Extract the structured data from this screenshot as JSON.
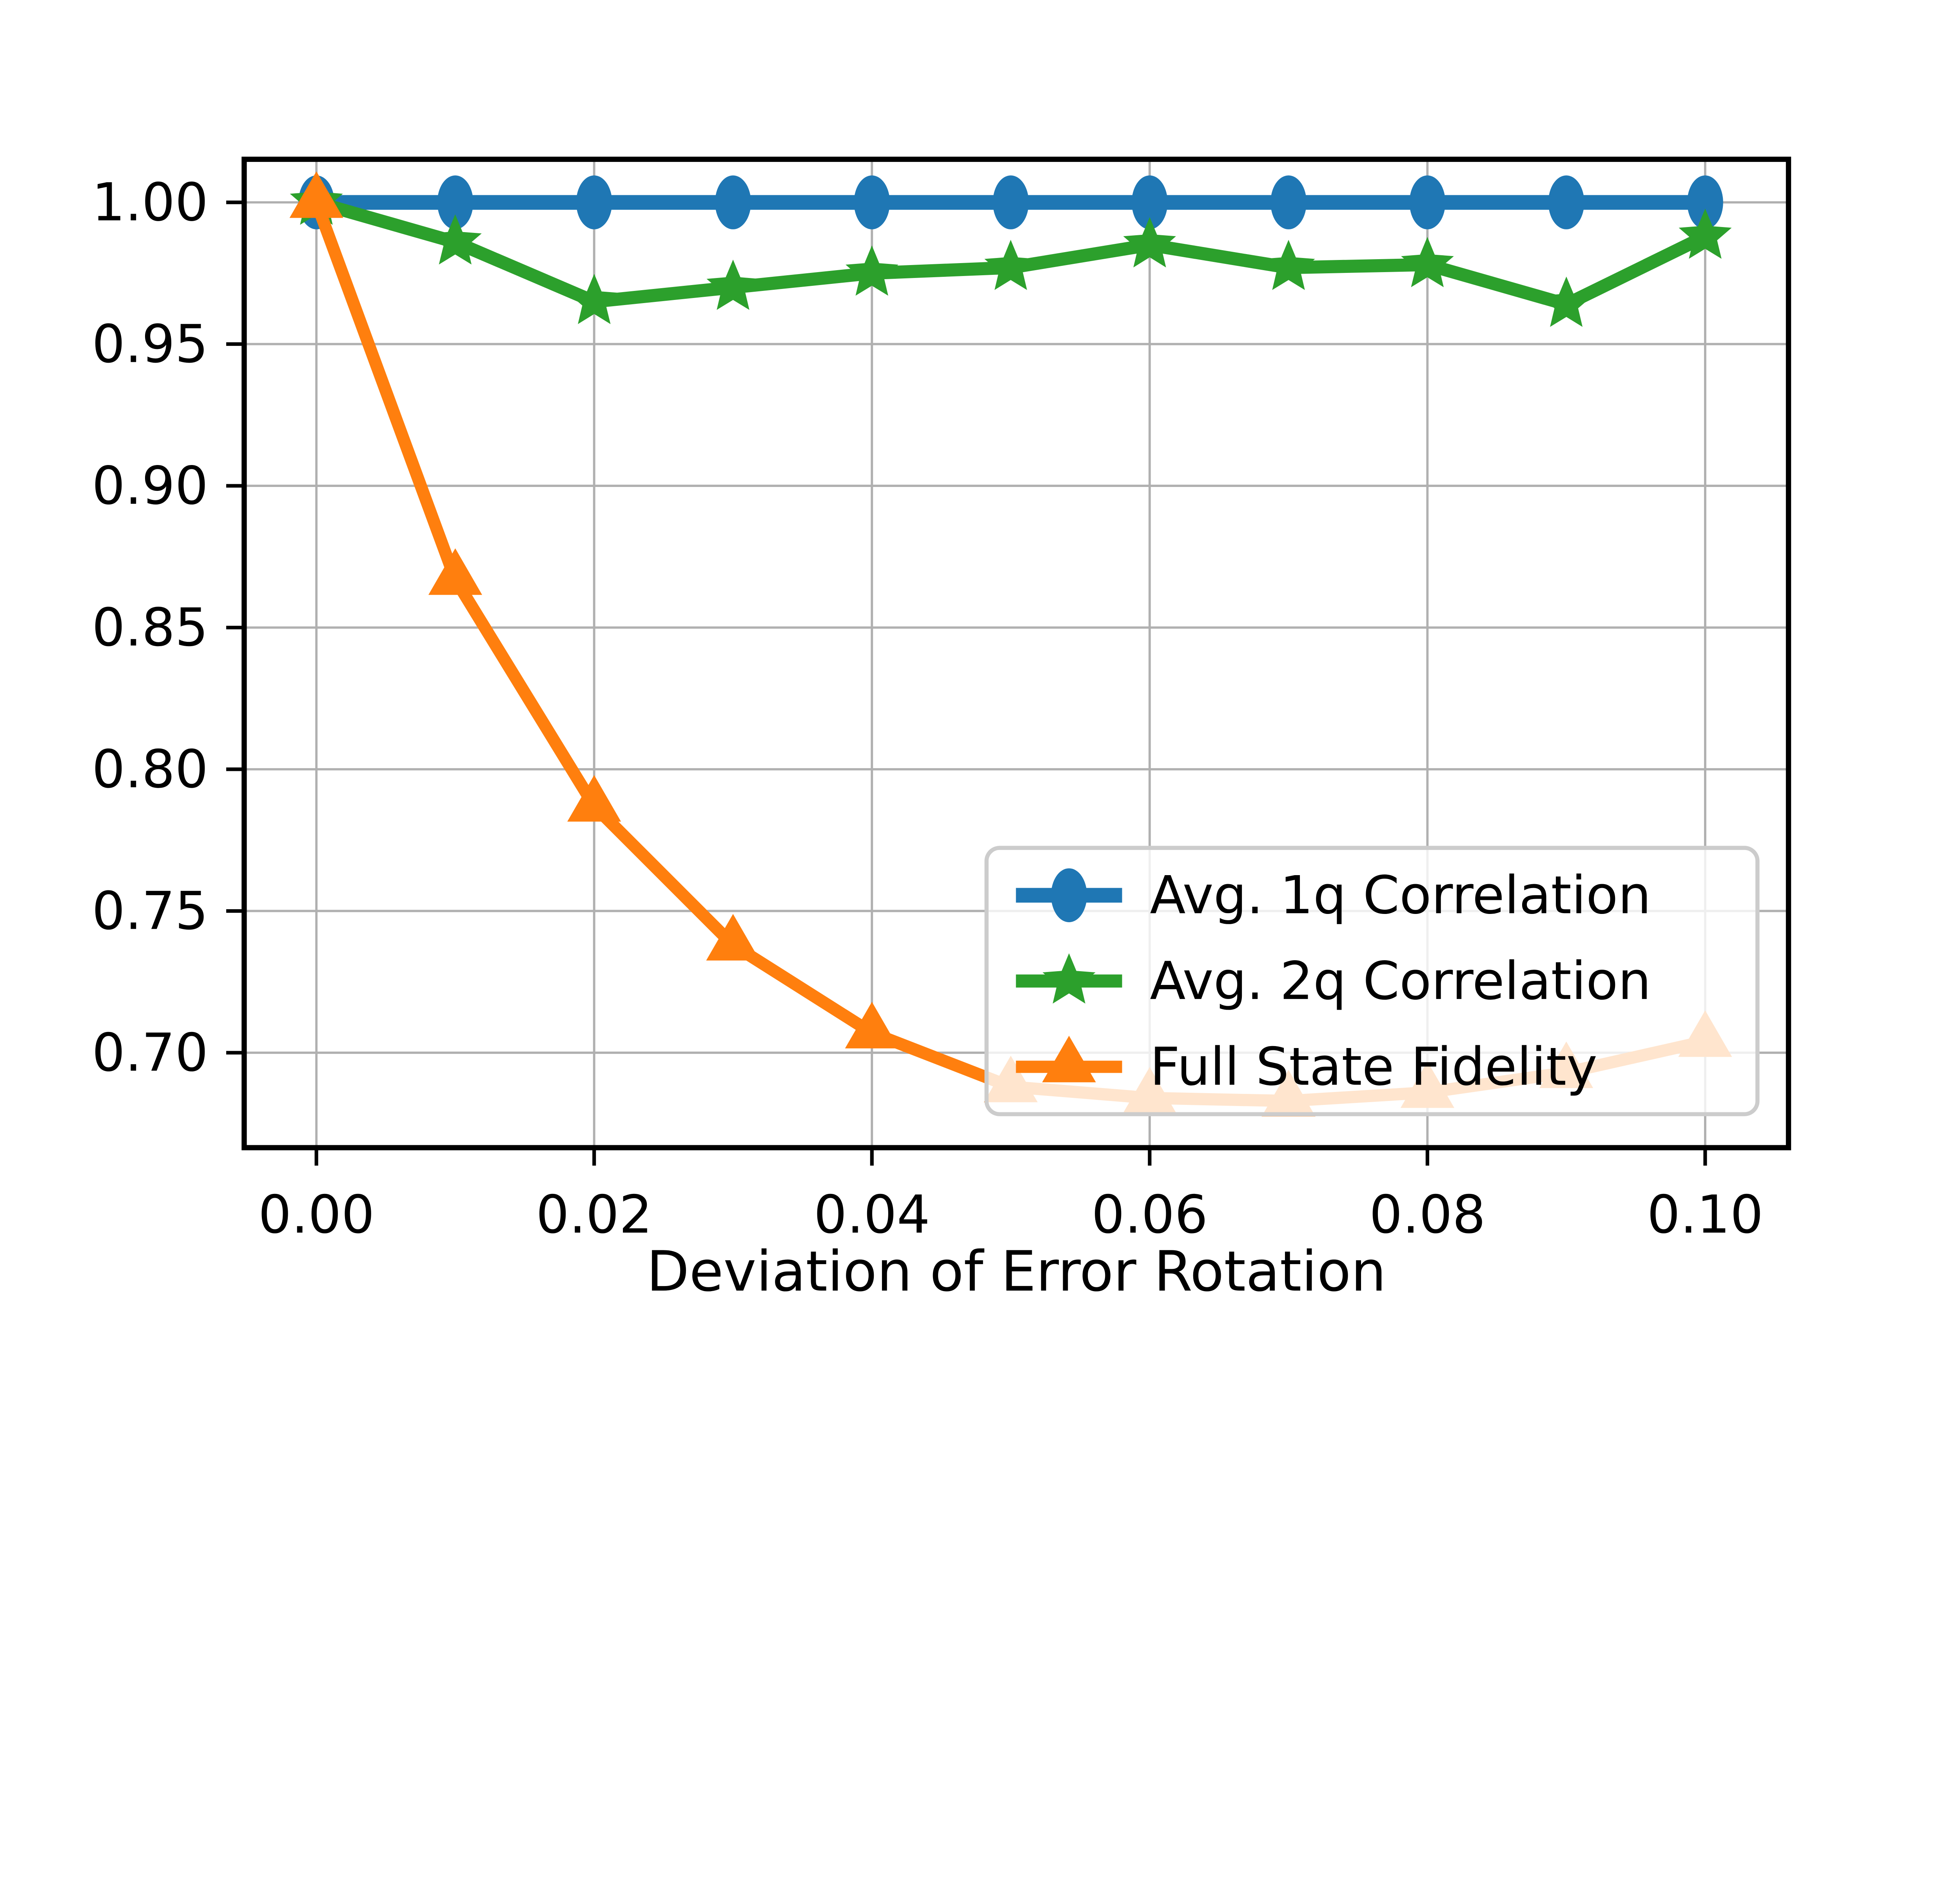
{
  "figure": {
    "background_color": "#ffffff",
    "axes_edge_color": "#000000",
    "grid_color": "#b0b0b0",
    "tick_color": "#000000"
  },
  "chart_data": {
    "type": "line",
    "title": "",
    "xlabel": "Deviation of Error Rotation",
    "ylabel": "",
    "grid": true,
    "x": [
      0.0,
      0.01,
      0.02,
      0.03,
      0.04,
      0.05,
      0.06,
      0.07,
      0.08,
      0.09,
      0.1
    ],
    "series": [
      {
        "name": "Avg. 1q Correlation",
        "color": "#1f77b4",
        "marker": "ellipse",
        "values": [
          1.0,
          1.0,
          1.0,
          1.0,
          1.0,
          1.0,
          1.0,
          1.0,
          1.0,
          1.0,
          1.0
        ]
      },
      {
        "name": "Avg. 2q Correlation",
        "color": "#2ca02c",
        "marker": "star",
        "values": [
          1.0,
          0.986,
          0.965,
          0.97,
          0.975,
          0.977,
          0.985,
          0.977,
          0.978,
          0.964,
          0.988
        ]
      },
      {
        "name": "Full State Fidelity",
        "color": "#ff7f0e",
        "marker": "triangle",
        "values": [
          1.0,
          0.867,
          0.787,
          0.738,
          0.707,
          0.688,
          0.684,
          0.683,
          0.686,
          0.693,
          0.704
        ]
      }
    ],
    "xticks": {
      "values": [
        0.0,
        0.02,
        0.04,
        0.06,
        0.08,
        0.1
      ],
      "labels": [
        "0.00",
        "0.02",
        "0.04",
        "0.06",
        "0.08",
        "0.10"
      ]
    },
    "yticks": {
      "values": [
        0.7,
        0.75,
        0.8,
        0.85,
        0.9,
        0.95,
        1.0
      ],
      "labels": [
        "0.70",
        "0.75",
        "0.80",
        "0.85",
        "0.90",
        "0.95",
        "1.00"
      ]
    },
    "xlim": [
      -0.0052,
      0.106
    ],
    "ylim": [
      0.6665,
      1.0152
    ],
    "legend": {
      "location": "lower right inside plot",
      "frame_alpha": 0.8,
      "frame_fill": "#ffffff",
      "border_color": "#cccccc",
      "entries": [
        "Avg. 1q Correlation",
        "Avg. 2q Correlation",
        "Full State Fidelity"
      ]
    }
  }
}
